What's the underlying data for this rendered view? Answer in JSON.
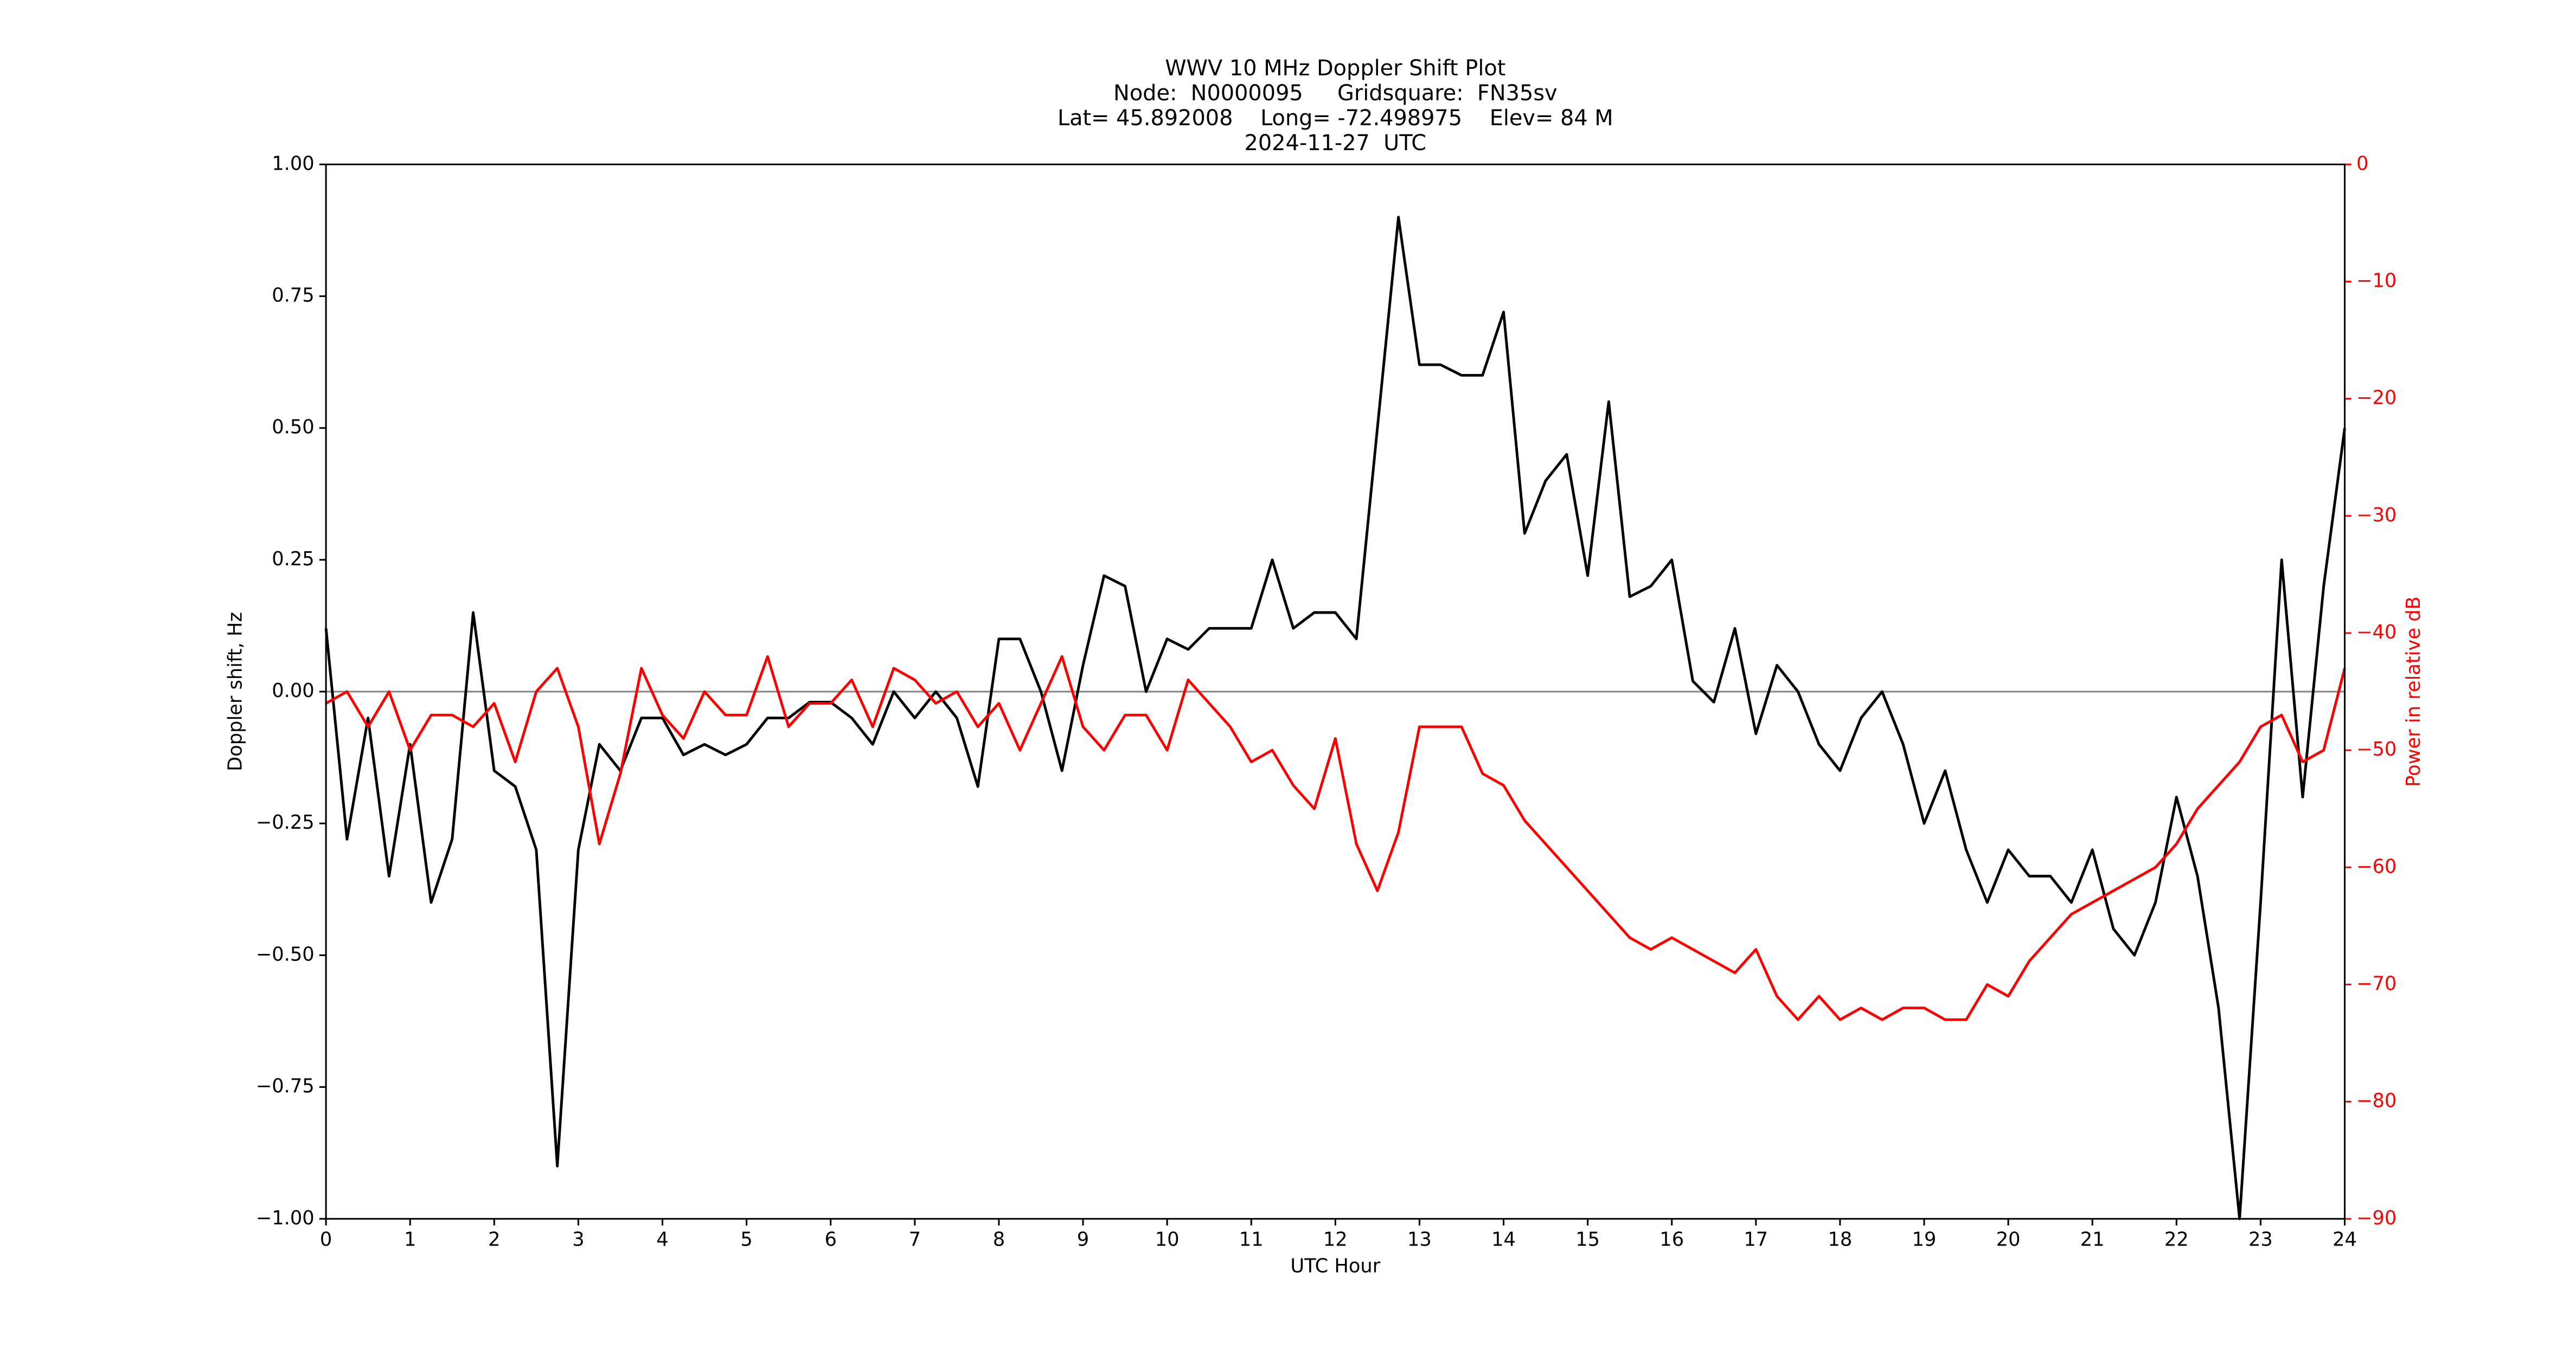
{
  "chart_data": {
    "type": "line",
    "title": [
      "WWV 10 MHz Doppler Shift Plot",
      "Node:  N0000095     Gridsquare:  FN35sv",
      "Lat= 45.892008    Long= -72.498975    Elev= 84 M",
      "2024-11-27  UTC"
    ],
    "x_label": "UTC Hour",
    "y_label": "Doppler shift, Hz",
    "y2_label": "Power in relative dB",
    "x": [
      0,
      0.25,
      0.5,
      0.75,
      1,
      1.25,
      1.5,
      1.75,
      2,
      2.25,
      2.5,
      2.75,
      3,
      3.25,
      3.5,
      3.75,
      4,
      4.25,
      4.5,
      4.75,
      5,
      5.25,
      5.5,
      5.75,
      6,
      6.25,
      6.5,
      6.75,
      7,
      7.25,
      7.5,
      7.75,
      8,
      8.25,
      8.5,
      8.75,
      9,
      9.25,
      9.5,
      9.75,
      10,
      10.25,
      10.5,
      10.75,
      11,
      11.25,
      11.5,
      11.75,
      12,
      12.25,
      12.5,
      12.75,
      13,
      13.25,
      13.5,
      13.75,
      14,
      14.25,
      14.5,
      14.75,
      15,
      15.25,
      15.5,
      15.75,
      16,
      16.25,
      16.5,
      16.75,
      17,
      17.25,
      17.5,
      17.75,
      18,
      18.25,
      18.5,
      18.75,
      19,
      19.25,
      19.5,
      19.75,
      20,
      20.25,
      20.5,
      20.75,
      21,
      21.25,
      21.5,
      21.75,
      22,
      22.25,
      22.5,
      22.75,
      23,
      23.25,
      23.5,
      23.75,
      24
    ],
    "series": [
      {
        "name": "Doppler shift",
        "color": "#000000",
        "axis": "y",
        "values": [
          0.12,
          -0.28,
          -0.05,
          -0.35,
          -0.1,
          -0.4,
          -0.28,
          0.15,
          -0.15,
          -0.18,
          -0.3,
          -0.9,
          -0.3,
          -0.1,
          -0.15,
          -0.05,
          -0.05,
          -0.12,
          -0.1,
          -0.12,
          -0.1,
          -0.05,
          -0.05,
          -0.02,
          -0.02,
          -0.05,
          -0.1,
          0.0,
          -0.05,
          0.0,
          -0.05,
          -0.18,
          0.1,
          0.1,
          0.0,
          -0.15,
          0.05,
          0.22,
          0.2,
          0.0,
          0.1,
          0.08,
          0.12,
          0.12,
          0.12,
          0.25,
          0.12,
          0.15,
          0.15,
          0.1,
          0.5,
          0.9,
          0.62,
          0.62,
          0.6,
          0.6,
          0.72,
          0.3,
          0.4,
          0.45,
          0.22,
          0.55,
          0.18,
          0.2,
          0.25,
          0.02,
          -0.02,
          0.12,
          -0.08,
          0.05,
          0.0,
          -0.1,
          -0.15,
          -0.05,
          0.0,
          -0.1,
          -0.25,
          -0.15,
          -0.3,
          -0.4,
          -0.3,
          -0.35,
          -0.35,
          -0.4,
          -0.3,
          -0.45,
          -0.5,
          -0.4,
          -0.2,
          -0.35,
          -0.6,
          -1.0,
          -0.4,
          0.25,
          -0.2,
          0.2,
          0.5
        ]
      },
      {
        "name": "Power",
        "color": "#ff0000",
        "axis": "y2",
        "values": [
          -46,
          -45,
          -48,
          -45,
          -50,
          -47,
          -47,
          -48,
          -46,
          -51,
          -45,
          -43,
          -48,
          -58,
          -52,
          -43,
          -47,
          -49,
          -45,
          -47,
          -47,
          -42,
          -48,
          -46,
          -46,
          -44,
          -48,
          -43,
          -44,
          -46,
          -45,
          -48,
          -46,
          -50,
          -46,
          -42,
          -48,
          -50,
          -47,
          -47,
          -50,
          -44,
          -46,
          -48,
          -51,
          -50,
          -53,
          -55,
          -49,
          -58,
          -62,
          -57,
          -48,
          -48,
          -48,
          -52,
          -53,
          -56,
          -58,
          -60,
          -62,
          -64,
          -66,
          -67,
          -66,
          -67,
          -68,
          -69,
          -67,
          -71,
          -73,
          -71,
          -73,
          -72,
          -73,
          -72,
          -72,
          -73,
          -73,
          -70,
          -71,
          -68,
          -66,
          -64,
          -63,
          -62,
          -61,
          -60,
          -58,
          -55,
          -53,
          -51,
          -48,
          -47,
          -51,
          -50,
          -43
        ]
      }
    ],
    "hline": 0,
    "xlim": [
      0,
      24
    ],
    "xticks": [
      0,
      1,
      2,
      3,
      4,
      5,
      6,
      7,
      8,
      9,
      10,
      11,
      12,
      13,
      14,
      15,
      16,
      17,
      18,
      19,
      20,
      21,
      22,
      23,
      24
    ],
    "ylim": [
      -1,
      1
    ],
    "yticks": [
      {
        "value": -1,
        "label": "−1.00"
      },
      {
        "value": -0.75,
        "label": "−0.75"
      },
      {
        "value": -0.5,
        "label": "−0.50"
      },
      {
        "value": -0.25,
        "label": "−0.25"
      },
      {
        "value": 0,
        "label": "0.00"
      },
      {
        "value": 0.25,
        "label": "0.25"
      },
      {
        "value": 0.5,
        "label": "0.50"
      },
      {
        "value": 0.75,
        "label": "0.75"
      },
      {
        "value": 1,
        "label": "1.00"
      }
    ],
    "y2lim": [
      -90,
      0
    ],
    "y2ticks": [
      {
        "value": -90,
        "label": "−90"
      },
      {
        "value": -80,
        "label": "−80"
      },
      {
        "value": -70,
        "label": "−70"
      },
      {
        "value": -60,
        "label": "−60"
      },
      {
        "value": -50,
        "label": "−50"
      },
      {
        "value": -40,
        "label": "−40"
      },
      {
        "value": -30,
        "label": "−30"
      },
      {
        "value": -20,
        "label": "−20"
      },
      {
        "value": -10,
        "label": "−10"
      },
      0
    ],
    "y2color": "#ff0000",
    "grid": false
  }
}
